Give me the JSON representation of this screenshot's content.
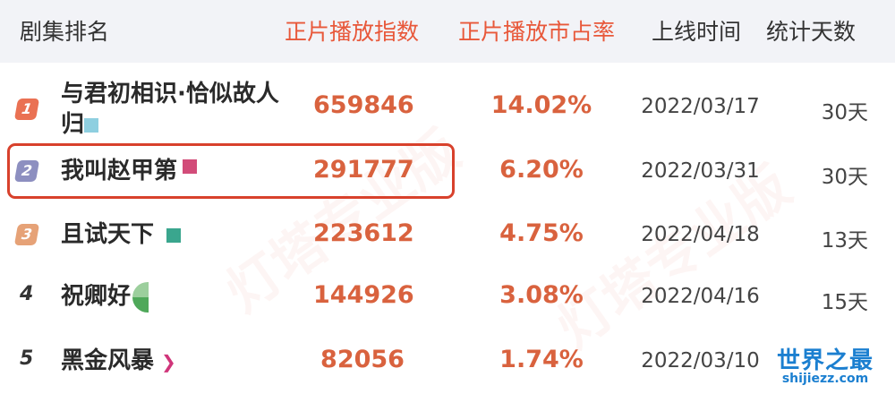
{
  "header": {
    "rank_name": "剧集排名",
    "index": "正片播放指数",
    "share": "正片播放市占率",
    "date": "上线时间",
    "days": "统计天数"
  },
  "rows": [
    {
      "rank": "1",
      "name": "与君初相识·恰似故人",
      "name2": "归",
      "index": "659846",
      "share": "14.02%",
      "date": "2022/03/17",
      "days": "30天",
      "tag_color": "#8ecfe0",
      "rank_color": "#ea7153"
    },
    {
      "rank": "2",
      "name": "我叫赵甲第",
      "index": "291777",
      "share": "6.20%",
      "date": "2022/03/31",
      "days": "30天",
      "tag_color": "#d24c79",
      "rank_color": "#8d8fc0",
      "highlighted": true
    },
    {
      "rank": "3",
      "name": "且试天下",
      "index": "223612",
      "share": "4.75%",
      "date": "2022/04/18",
      "days": "13天",
      "tag_color": "#3aa68e",
      "rank_color": "#e6a277"
    },
    {
      "rank": "4",
      "name": "祝卿好",
      "index": "144926",
      "share": "3.08%",
      "date": "2022/04/16",
      "days": "15天",
      "tag_color": "#4fa85a"
    },
    {
      "rank": "5",
      "name": "黑金风暴",
      "index": "82056",
      "share": "1.74%",
      "date": "2022/03/10",
      "days": "",
      "tag_color": "#d0357a"
    }
  ],
  "watermark": "灯塔专业版",
  "logo": {
    "cn": "世界之最",
    "url": "shijiezz.com"
  }
}
